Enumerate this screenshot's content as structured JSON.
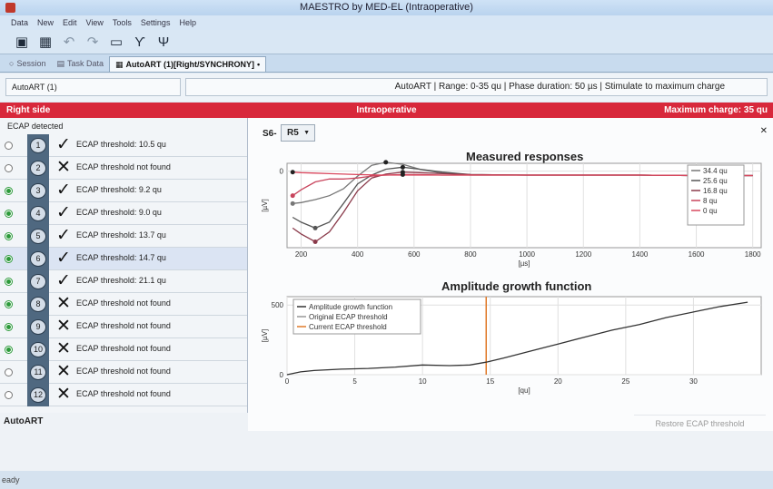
{
  "window": {
    "title": "MAESTRO by MED-EL (Intraoperative)"
  },
  "menu": [
    "Data",
    "New",
    "Edit",
    "View",
    "Tools",
    "Settings",
    "Help"
  ],
  "toolbar": {
    "icons": [
      "save-icon",
      "save-all-icon",
      "undo-icon",
      "redo-icon",
      "comment-icon",
      "antenna-icon",
      "antenna-alt-icon"
    ]
  },
  "tabs": [
    {
      "label": "Session",
      "icon": "○"
    },
    {
      "label": "Task Data",
      "icon": "▤"
    },
    {
      "label": "AutoART (1)[Right/SYNCHRONY]",
      "icon": "▦",
      "active": true
    }
  ],
  "info": {
    "task": "AutoART (1)",
    "summary": "AutoART | Range: 0-35 qu | Phase duration: 50 µs | Stimulate to maximum charge"
  },
  "status_bar": {
    "side": "Right side",
    "mode": "Intraoperative",
    "max_charge": "Maximum charge: 35 qu"
  },
  "left": {
    "header": "ECAP detected",
    "footer": "AutoART",
    "rows": [
      {
        "num": "1",
        "detected": false,
        "ok": true,
        "text": "ECAP threshold: 10.5 qu"
      },
      {
        "num": "2",
        "detected": false,
        "ok": false,
        "text": "ECAP threshold not found"
      },
      {
        "num": "3",
        "detected": true,
        "ok": true,
        "text": "ECAP threshold: 9.2 qu"
      },
      {
        "num": "4",
        "detected": true,
        "ok": true,
        "text": "ECAP threshold: 9.0 qu"
      },
      {
        "num": "5",
        "detected": true,
        "ok": true,
        "text": "ECAP threshold: 13.7 qu"
      },
      {
        "num": "6",
        "detected": true,
        "ok": true,
        "text": "ECAP threshold: 14.7 qu",
        "selected": true
      },
      {
        "num": "7",
        "detected": true,
        "ok": true,
        "text": "ECAP threshold: 21.1 qu"
      },
      {
        "num": "8",
        "detected": true,
        "ok": false,
        "text": "ECAP threshold not found"
      },
      {
        "num": "9",
        "detected": true,
        "ok": false,
        "text": "ECAP threshold not found"
      },
      {
        "num": "10",
        "detected": true,
        "ok": false,
        "text": "ECAP threshold not found"
      },
      {
        "num": "11",
        "detected": false,
        "ok": false,
        "text": "ECAP threshold not found"
      },
      {
        "num": "12",
        "detected": false,
        "ok": false,
        "text": "ECAP threshold not found"
      }
    ]
  },
  "main": {
    "electrode_label": "S6-",
    "electrode_value": "R5",
    "restore_label": "Restore ECAP threshold"
  },
  "chart_data": [
    {
      "type": "line",
      "title": "Measured responses",
      "xlabel": "[µs]",
      "ylabel": "[µV]",
      "xlim": [
        150,
        1830
      ],
      "ylim": [
        -780,
        80
      ],
      "xticks": [
        200,
        400,
        600,
        800,
        1000,
        1200,
        1400,
        1600,
        1800
      ],
      "yticks": [
        0
      ],
      "grid": true,
      "legend": "right",
      "series": [
        {
          "name": "34.4 qu",
          "color": "#777777",
          "x": [
            170,
            200,
            250,
            300,
            350,
            400,
            450,
            500,
            560,
            620,
            700,
            800,
            1000,
            1200,
            1400,
            1600,
            1800
          ],
          "y": [
            -330,
            -320,
            -290,
            -250,
            -180,
            -50,
            60,
            90,
            70,
            20,
            -20,
            -40,
            -40,
            -40,
            -40,
            -45,
            -45
          ]
        },
        {
          "name": "25.6 qu",
          "color": "#555555",
          "x": [
            170,
            200,
            250,
            300,
            350,
            400,
            450,
            500,
            560,
            620,
            700,
            800,
            1000,
            1200,
            1400,
            1600,
            1800
          ],
          "y": [
            -470,
            -520,
            -580,
            -520,
            -330,
            -130,
            -40,
            20,
            40,
            20,
            -10,
            -35,
            -40,
            -40,
            -40,
            -45,
            -45
          ]
        },
        {
          "name": "16.8 qu",
          "color": "#8a3a4a",
          "x": [
            170,
            200,
            250,
            300,
            350,
            400,
            450,
            500,
            560,
            620,
            700,
            800,
            1000,
            1200,
            1400,
            1600,
            1800
          ],
          "y": [
            -580,
            -640,
            -720,
            -620,
            -420,
            -200,
            -70,
            -30,
            -10,
            -15,
            -25,
            -35,
            -40,
            -40,
            -40,
            -45,
            -45
          ]
        },
        {
          "name": "8 qu",
          "color": "#c8445c",
          "x": [
            170,
            200,
            250,
            300,
            350,
            400,
            450,
            500,
            560,
            620,
            700,
            800,
            1000,
            1200,
            1400,
            1600,
            1800
          ],
          "y": [
            -250,
            -190,
            -110,
            -80,
            -80,
            -70,
            -50,
            -40,
            -35,
            -35,
            -40,
            -40,
            -40,
            -40,
            -40,
            -45,
            -45
          ]
        },
        {
          "name": "0 qu",
          "color": "#d9485e",
          "x": [
            170,
            200,
            250,
            300,
            350,
            400,
            450,
            500,
            560,
            620,
            700,
            800,
            1000,
            1200,
            1400,
            1600,
            1800
          ],
          "y": [
            -10,
            -15,
            -20,
            -25,
            -30,
            -35,
            -38,
            -40,
            -40,
            -40,
            -40,
            -40,
            -40,
            -40,
            -40,
            -45,
            -45
          ]
        }
      ]
    },
    {
      "type": "line",
      "title": "Amplitude growth function",
      "xlabel": "[qu]",
      "ylabel": "[µV]",
      "xlim": [
        0,
        35
      ],
      "ylim": [
        0,
        560
      ],
      "xticks": [
        0,
        5,
        10,
        15,
        20,
        25,
        30
      ],
      "yticks": [
        0,
        500
      ],
      "grid": true,
      "legend": "top-left",
      "vlines": [
        {
          "name": "Original ECAP threshold",
          "x": 14.7,
          "color": "#999999"
        },
        {
          "name": "Current ECAP threshold",
          "x": 14.7,
          "color": "#e07a2a"
        }
      ],
      "series": [
        {
          "name": "Amplitude growth function",
          "color": "#333333",
          "x": [
            0,
            1,
            2,
            4,
            6,
            8,
            10,
            12,
            13.5,
            14.7,
            16,
            18,
            20,
            22,
            24,
            26,
            28,
            30,
            32,
            34
          ],
          "y": [
            0,
            20,
            30,
            40,
            45,
            55,
            70,
            65,
            70,
            90,
            120,
            170,
            220,
            270,
            320,
            360,
            410,
            450,
            490,
            520
          ]
        }
      ]
    }
  ]
}
